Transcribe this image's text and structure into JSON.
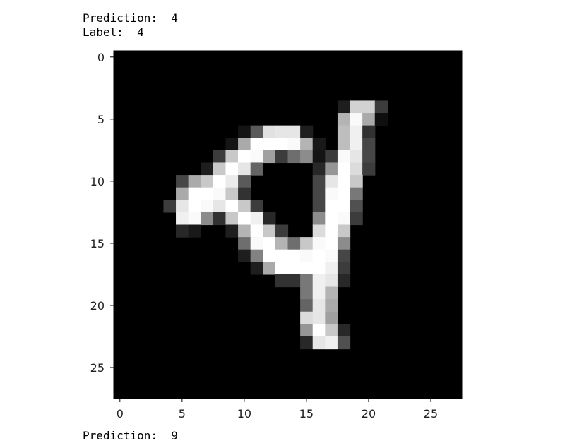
{
  "output": {
    "prediction_label": "Prediction:",
    "prediction_value": "4",
    "label_label": "Label:",
    "label_value": "4",
    "next_prediction_label": "Prediction:",
    "next_prediction_value": "9"
  },
  "chart_data": {
    "type": "heatmap",
    "colormap": "gray",
    "xlim": [
      -0.5,
      27.5
    ],
    "ylim": [
      27.5,
      -0.5
    ],
    "xticks": [
      0,
      5,
      10,
      15,
      20,
      25
    ],
    "yticks": [
      0,
      5,
      10,
      15,
      20,
      25
    ],
    "grid": false,
    "rows": 28,
    "cols": 28,
    "nonzero_pixels": [
      [
        4,
        18,
        30
      ],
      [
        4,
        19,
        210
      ],
      [
        4,
        20,
        210
      ],
      [
        4,
        21,
        60
      ],
      [
        5,
        18,
        180
      ],
      [
        5,
        19,
        250
      ],
      [
        5,
        20,
        170
      ],
      [
        5,
        21,
        15
      ],
      [
        6,
        10,
        20
      ],
      [
        6,
        11,
        90
      ],
      [
        6,
        12,
        225
      ],
      [
        6,
        13,
        230
      ],
      [
        6,
        14,
        230
      ],
      [
        6,
        15,
        30
      ],
      [
        6,
        18,
        190
      ],
      [
        6,
        19,
        240
      ],
      [
        6,
        20,
        50
      ],
      [
        7,
        9,
        20
      ],
      [
        7,
        10,
        170
      ],
      [
        7,
        11,
        255
      ],
      [
        7,
        12,
        255
      ],
      [
        7,
        13,
        255
      ],
      [
        7,
        14,
        250
      ],
      [
        7,
        15,
        180
      ],
      [
        7,
        16,
        25
      ],
      [
        7,
        18,
        190
      ],
      [
        7,
        19,
        240
      ],
      [
        7,
        20,
        70
      ],
      [
        8,
        8,
        60
      ],
      [
        8,
        9,
        200
      ],
      [
        8,
        10,
        255
      ],
      [
        8,
        11,
        250
      ],
      [
        8,
        12,
        160
      ],
      [
        8,
        13,
        60
      ],
      [
        8,
        14,
        110
      ],
      [
        8,
        15,
        140
      ],
      [
        8,
        16,
        20
      ],
      [
        8,
        17,
        60
      ],
      [
        8,
        18,
        250
      ],
      [
        8,
        19,
        230
      ],
      [
        8,
        20,
        70
      ],
      [
        9,
        7,
        30
      ],
      [
        9,
        8,
        200
      ],
      [
        9,
        9,
        255
      ],
      [
        9,
        10,
        230
      ],
      [
        9,
        11,
        100
      ],
      [
        9,
        16,
        40
      ],
      [
        9,
        17,
        150
      ],
      [
        9,
        18,
        255
      ],
      [
        9,
        19,
        220
      ],
      [
        9,
        20,
        60
      ],
      [
        10,
        5,
        70
      ],
      [
        10,
        6,
        170
      ],
      [
        10,
        7,
        200
      ],
      [
        10,
        8,
        255
      ],
      [
        10,
        9,
        235
      ],
      [
        10,
        10,
        90
      ],
      [
        10,
        16,
        70
      ],
      [
        10,
        17,
        230
      ],
      [
        10,
        18,
        255
      ],
      [
        10,
        19,
        200
      ],
      [
        11,
        5,
        170
      ],
      [
        11,
        6,
        255
      ],
      [
        11,
        7,
        255
      ],
      [
        11,
        8,
        250
      ],
      [
        11,
        9,
        200
      ],
      [
        11,
        10,
        50
      ],
      [
        11,
        16,
        70
      ],
      [
        11,
        17,
        250
      ],
      [
        11,
        18,
        255
      ],
      [
        11,
        19,
        120
      ],
      [
        12,
        4,
        60
      ],
      [
        12,
        5,
        230
      ],
      [
        12,
        6,
        255
      ],
      [
        12,
        7,
        250
      ],
      [
        12,
        8,
        230
      ],
      [
        12,
        9,
        255
      ],
      [
        12,
        10,
        200
      ],
      [
        12,
        11,
        60
      ],
      [
        12,
        16,
        70
      ],
      [
        12,
        17,
        255
      ],
      [
        12,
        18,
        255
      ],
      [
        12,
        19,
        80
      ],
      [
        13,
        5,
        240
      ],
      [
        13,
        6,
        250
      ],
      [
        13,
        7,
        140
      ],
      [
        13,
        8,
        50
      ],
      [
        13,
        9,
        200
      ],
      [
        13,
        10,
        255
      ],
      [
        13,
        11,
        240
      ],
      [
        13,
        12,
        40
      ],
      [
        13,
        16,
        140
      ],
      [
        13,
        17,
        255
      ],
      [
        13,
        18,
        250
      ],
      [
        13,
        19,
        60
      ],
      [
        14,
        5,
        40
      ],
      [
        14,
        6,
        25
      ],
      [
        14,
        9,
        30
      ],
      [
        14,
        10,
        180
      ],
      [
        14,
        11,
        255
      ],
      [
        14,
        12,
        200
      ],
      [
        14,
        13,
        60
      ],
      [
        14,
        16,
        220
      ],
      [
        14,
        17,
        255
      ],
      [
        14,
        18,
        200
      ],
      [
        15,
        10,
        110
      ],
      [
        15,
        11,
        250
      ],
      [
        15,
        12,
        255
      ],
      [
        15,
        13,
        180
      ],
      [
        15,
        14,
        110
      ],
      [
        15,
        15,
        200
      ],
      [
        15,
        16,
        250
      ],
      [
        15,
        17,
        255
      ],
      [
        15,
        18,
        140
      ],
      [
        16,
        10,
        30
      ],
      [
        16,
        11,
        130
      ],
      [
        16,
        12,
        255
      ],
      [
        16,
        13,
        255
      ],
      [
        16,
        14,
        255
      ],
      [
        16,
        15,
        250
      ],
      [
        16,
        16,
        255
      ],
      [
        16,
        17,
        250
      ],
      [
        16,
        18,
        70
      ],
      [
        17,
        11,
        30
      ],
      [
        17,
        12,
        170
      ],
      [
        17,
        13,
        255
      ],
      [
        17,
        14,
        255
      ],
      [
        17,
        15,
        255
      ],
      [
        17,
        16,
        255
      ],
      [
        17,
        17,
        240
      ],
      [
        17,
        18,
        60
      ],
      [
        18,
        13,
        50
      ],
      [
        18,
        14,
        50
      ],
      [
        18,
        15,
        120
      ],
      [
        18,
        16,
        240
      ],
      [
        18,
        17,
        230
      ],
      [
        18,
        18,
        40
      ],
      [
        19,
        15,
        120
      ],
      [
        19,
        16,
        240
      ],
      [
        19,
        17,
        180
      ],
      [
        20,
        15,
        100
      ],
      [
        20,
        16,
        230
      ],
      [
        20,
        17,
        170
      ],
      [
        21,
        15,
        220
      ],
      [
        21,
        16,
        230
      ],
      [
        21,
        17,
        160
      ],
      [
        22,
        15,
        150
      ],
      [
        22,
        16,
        255
      ],
      [
        22,
        17,
        200
      ],
      [
        22,
        18,
        40
      ],
      [
        23,
        15,
        40
      ],
      [
        23,
        16,
        230
      ],
      [
        23,
        17,
        240
      ],
      [
        23,
        18,
        80
      ]
    ]
  }
}
